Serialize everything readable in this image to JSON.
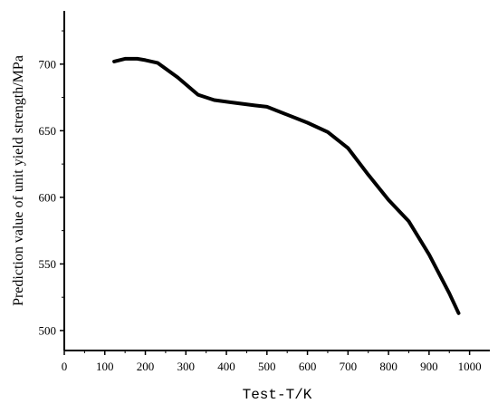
{
  "chart_data": {
    "type": "line",
    "title": "",
    "xlabel": "Test-T/K",
    "ylabel": "Prediction value of unit yield strength/MPa",
    "xlim": [
      0,
      1050
    ],
    "ylim": [
      485,
      740
    ],
    "x_ticks": [
      0,
      100,
      200,
      300,
      400,
      500,
      600,
      700,
      800,
      900,
      1000
    ],
    "x_tick_labels": [
      "0",
      "100",
      "200",
      "300",
      "400",
      "500",
      "600",
      "700",
      "800",
      "900",
      "1000"
    ],
    "y_ticks": [
      500,
      550,
      600,
      650,
      700
    ],
    "y_tick_labels": [
      "500",
      "550",
      "600",
      "650",
      "700"
    ],
    "grid": false,
    "legend": "none",
    "line_color": "#000000",
    "series": [
      {
        "x": [
          123,
          150,
          180,
          200,
          230,
          280,
          330,
          370,
          420,
          470,
          500,
          550,
          600,
          650,
          700,
          750,
          800,
          850,
          900,
          950,
          973
        ],
        "values": [
          702,
          704,
          704,
          703,
          701,
          690,
          677,
          673,
          671,
          669,
          668,
          662,
          656,
          649,
          637,
          617,
          598,
          582,
          557,
          528,
          513
        ]
      }
    ]
  }
}
